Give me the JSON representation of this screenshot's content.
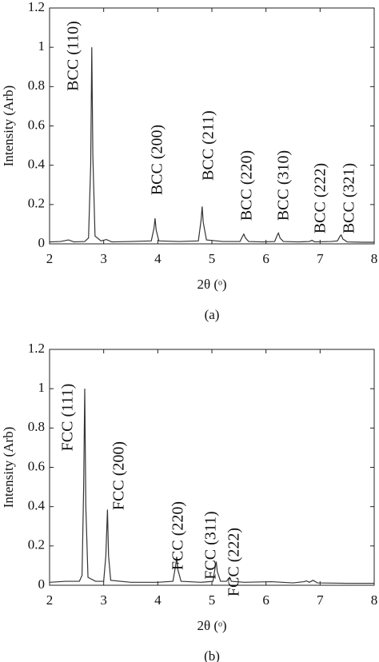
{
  "chart_data": [
    {
      "type": "line",
      "ylabel": "Intensity (Arb)",
      "xlabel": "2θ (ᵒ)",
      "caption": "(a)",
      "color": "#333333",
      "xlim": [
        2,
        8
      ],
      "xticks": [
        2,
        3,
        4,
        5,
        6,
        7,
        8
      ],
      "ylim": [
        0,
        1.2
      ],
      "yticks": [
        0,
        0.2,
        0.4,
        0.6,
        0.8,
        1,
        1.2
      ],
      "x": [
        2.0,
        2.2,
        2.35,
        2.45,
        2.65,
        2.72,
        2.76,
        2.78,
        2.8,
        2.84,
        2.95,
        3.05,
        3.15,
        3.5,
        3.88,
        3.93,
        3.95,
        3.97,
        4.02,
        4.4,
        4.75,
        4.8,
        4.82,
        4.84,
        4.9,
        5.2,
        5.52,
        5.57,
        5.59,
        5.62,
        5.68,
        5.95,
        6.16,
        6.21,
        6.23,
        6.26,
        6.32,
        6.6,
        6.8,
        6.85,
        6.9,
        7.2,
        7.32,
        7.37,
        7.39,
        7.42,
        7.5,
        7.8,
        8.0
      ],
      "values": [
        0.01,
        0.012,
        0.02,
        0.01,
        0.012,
        0.03,
        0.4,
        1.0,
        0.45,
        0.04,
        0.015,
        0.022,
        0.01,
        0.012,
        0.015,
        0.08,
        0.13,
        0.07,
        0.015,
        0.012,
        0.015,
        0.12,
        0.19,
        0.11,
        0.02,
        0.012,
        0.012,
        0.04,
        0.05,
        0.03,
        0.012,
        0.01,
        0.012,
        0.045,
        0.055,
        0.03,
        0.012,
        0.01,
        0.012,
        0.018,
        0.01,
        0.012,
        0.015,
        0.04,
        0.045,
        0.025,
        0.01,
        0.008,
        0.008
      ],
      "annotations": [
        "BCC (110)",
        "BCC (200)",
        "BCC (211)",
        "BCC (220)",
        "BCC (310)",
        "BCC (222)",
        "BCC (321)"
      ]
    },
    {
      "type": "line",
      "ylabel": "Intensity (Arb)",
      "xlabel": "2θ (ᵒ)",
      "caption": "(b)",
      "color": "#333333",
      "xlim": [
        2,
        8
      ],
      "xticks": [
        2,
        3,
        4,
        5,
        6,
        7,
        8
      ],
      "ylim": [
        0,
        1.2
      ],
      "yticks": [
        0,
        0.2,
        0.4,
        0.6,
        0.8,
        1,
        1.2
      ],
      "x": [
        2.0,
        2.3,
        2.55,
        2.6,
        2.63,
        2.65,
        2.67,
        2.71,
        2.85,
        3.0,
        3.04,
        3.07,
        3.09,
        3.13,
        3.5,
        4.0,
        4.28,
        4.33,
        4.35,
        4.37,
        4.43,
        4.8,
        5.02,
        5.06,
        5.08,
        5.1,
        5.16,
        5.27,
        5.31,
        5.33,
        5.36,
        5.6,
        6.1,
        6.5,
        6.7,
        6.75,
        6.8,
        6.87,
        6.95,
        7.5,
        8.0
      ],
      "values": [
        0.015,
        0.02,
        0.02,
        0.05,
        0.5,
        1.0,
        0.4,
        0.04,
        0.02,
        0.02,
        0.15,
        0.385,
        0.15,
        0.025,
        0.015,
        0.015,
        0.02,
        0.1,
        0.145,
        0.08,
        0.02,
        0.015,
        0.02,
        0.09,
        0.12,
        0.07,
        0.02,
        0.02,
        0.035,
        0.04,
        0.02,
        0.015,
        0.018,
        0.012,
        0.018,
        0.022,
        0.015,
        0.025,
        0.012,
        0.01,
        0.01
      ],
      "annotations": [
        "FCC (111)",
        "FCC (200)",
        "FCC (220)",
        "FCC (311)",
        "FCC (222)"
      ]
    }
  ]
}
